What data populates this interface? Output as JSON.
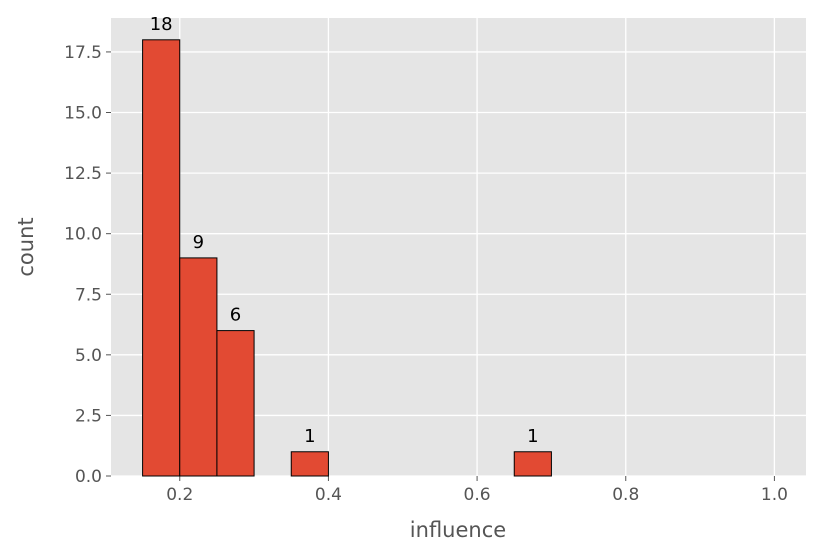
{
  "chart_data": {
    "type": "histogram",
    "xlabel": "influence",
    "ylabel": "count",
    "bins": [
      0.15,
      0.2,
      0.25,
      0.3,
      0.35,
      0.4,
      0.45,
      0.5,
      0.55,
      0.6,
      0.65,
      0.7,
      0.75,
      0.8,
      0.85,
      0.9,
      0.95,
      1.0
    ],
    "counts": [
      18,
      9,
      6,
      0,
      1,
      0,
      0,
      0,
      0,
      0,
      1,
      0,
      0,
      0,
      0,
      0,
      0
    ],
    "color": "#e24a33",
    "edgecolor": "#000000",
    "xlim": [
      0.1075,
      1.0425
    ],
    "ylim": [
      0,
      18.9
    ],
    "xticks": [
      0.2,
      0.4,
      0.6,
      0.8,
      {
        "value": 1.0,
        "label": "1.0"
      }
    ],
    "yticks": [
      {
        "value": 0,
        "label": "0.0"
      },
      2.5,
      {
        "value": 5,
        "label": "5.0"
      },
      7.5,
      {
        "value": 10,
        "label": "10.0"
      },
      12.5,
      {
        "value": 15,
        "label": "15.0"
      },
      17.5
    ],
    "grid": true
  }
}
